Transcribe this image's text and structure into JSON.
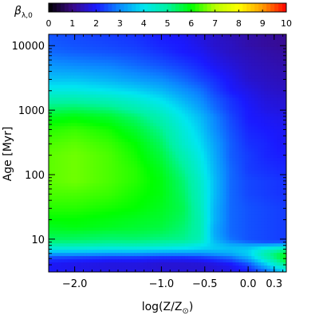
{
  "chart_data": {
    "type": "heatmap",
    "colorbar": {
      "label_symbol": "β",
      "label_subscript": "λ,0",
      "range": [
        0,
        10
      ],
      "ticks": [
        "0",
        "1",
        "2",
        "3",
        "4",
        "5",
        "6",
        "7",
        "8",
        "9",
        "10"
      ],
      "colormap": [
        "#000000",
        "#3b0a86",
        "#1a1aff",
        "#0b8bff",
        "#00e6f0",
        "#00f2a0",
        "#00ff00",
        "#b8ff00",
        "#ffff00",
        "#ff9b00",
        "#ff0000"
      ]
    },
    "x_axis": {
      "label_prefix": "log(Z/Z",
      "label_sub": "⊙",
      "label_suffix": ")",
      "range": [
        -2.3,
        0.44
      ],
      "ticks": [
        {
          "value": -2.0,
          "label": "−2.0"
        },
        {
          "value": -1.0,
          "label": "−1.0"
        },
        {
          "value": -0.5,
          "label": "−0.5"
        },
        {
          "value": 0.0,
          "label": "0.0"
        },
        {
          "value": 0.3,
          "label": "0.3"
        }
      ]
    },
    "y_axis": {
      "label": "Age [Myr]",
      "scale": "log",
      "range": [
        3.1,
        15000
      ],
      "ticks": [
        {
          "value": 10,
          "label": "10"
        },
        {
          "value": 100,
          "label": "100"
        },
        {
          "value": 1000,
          "label": "1000"
        },
        {
          "value": 10000,
          "label": "10000"
        }
      ]
    },
    "x": [
      -2.3,
      -2.0,
      -1.6,
      -1.3,
      -1.0,
      -0.75,
      -0.55,
      -0.4,
      -0.2,
      0.0,
      0.2,
      0.44
    ],
    "y": [
      3.1,
      4,
      5,
      6,
      7,
      8,
      9,
      10,
      12,
      15,
      20,
      30,
      50,
      80,
      120,
      200,
      300,
      500,
      800,
      1000,
      1500,
      2000,
      3000,
      5000,
      8000,
      10000,
      15000
    ],
    "z": [
      [
        2.0,
        1.9,
        1.8,
        1.8,
        1.7,
        1.7,
        1.7,
        1.7,
        1.8,
        2.0,
        2.6,
        3.8
      ],
      [
        1.9,
        1.8,
        1.7,
        1.7,
        1.6,
        1.6,
        1.6,
        1.7,
        1.9,
        2.4,
        3.6,
        5.2
      ],
      [
        2.3,
        2.2,
        2.1,
        2.1,
        2.0,
        2.0,
        2.1,
        2.3,
        2.6,
        3.3,
        4.6,
        5.9
      ],
      [
        3.3,
        3.3,
        3.2,
        3.2,
        3.1,
        3.1,
        3.1,
        3.2,
        3.4,
        3.8,
        4.9,
        5.8
      ],
      [
        4.2,
        4.2,
        4.1,
        4.1,
        4.0,
        3.9,
        3.8,
        3.7,
        3.6,
        3.7,
        4.3,
        4.9
      ],
      [
        4.8,
        4.8,
        4.7,
        4.7,
        4.6,
        4.4,
        4.1,
        3.7,
        3.4,
        3.3,
        3.4,
        3.6
      ],
      [
        5.2,
        5.2,
        5.1,
        5.1,
        5.0,
        4.9,
        4.5,
        3.6,
        3.0,
        2.7,
        2.5,
        2.5
      ],
      [
        5.4,
        5.4,
        5.3,
        5.3,
        5.2,
        5.1,
        4.7,
        3.5,
        2.8,
        2.5,
        2.4,
        2.3
      ],
      [
        5.6,
        5.6,
        5.5,
        5.5,
        5.4,
        5.2,
        4.8,
        3.4,
        2.7,
        2.5,
        2.4,
        2.3
      ],
      [
        5.8,
        5.9,
        5.8,
        5.7,
        5.6,
        5.3,
        4.8,
        3.4,
        2.7,
        2.5,
        2.4,
        2.3
      ],
      [
        6.0,
        6.0,
        5.9,
        5.8,
        5.7,
        5.4,
        4.8,
        3.5,
        2.7,
        2.5,
        2.4,
        2.3
      ],
      [
        6.2,
        6.2,
        6.1,
        6.0,
        5.8,
        5.5,
        4.7,
        3.5,
        2.7,
        2.5,
        2.4,
        2.3
      ],
      [
        6.4,
        6.4,
        6.3,
        6.1,
        5.9,
        5.4,
        4.6,
        3.6,
        2.7,
        2.4,
        2.3,
        2.2
      ],
      [
        6.5,
        6.6,
        6.4,
        6.2,
        5.9,
        5.3,
        4.5,
        3.6,
        2.7,
        2.4,
        2.3,
        2.2
      ],
      [
        6.5,
        6.6,
        6.4,
        6.2,
        5.8,
        5.1,
        4.3,
        3.5,
        2.7,
        2.3,
        2.2,
        2.1
      ],
      [
        6.5,
        6.6,
        6.4,
        6.1,
        5.6,
        4.8,
        4.1,
        3.4,
        2.6,
        2.3,
        2.1,
        2.0
      ],
      [
        6.4,
        6.5,
        6.3,
        6.0,
        5.4,
        4.5,
        3.9,
        3.3,
        2.6,
        2.2,
        2.1,
        1.9
      ],
      [
        6.2,
        6.3,
        6.1,
        5.7,
        5.1,
        4.3,
        3.7,
        3.1,
        2.5,
        2.1,
        2.0,
        1.9
      ],
      [
        5.8,
        5.9,
        5.7,
        5.3,
        4.7,
        4.0,
        3.5,
        3.0,
        2.4,
        2.0,
        1.9,
        1.8
      ],
      [
        5.4,
        5.5,
        5.3,
        4.9,
        4.4,
        3.8,
        3.3,
        2.8,
        2.3,
        2.0,
        1.8,
        1.7
      ],
      [
        4.8,
        4.8,
        4.6,
        4.3,
        3.9,
        3.4,
        3.0,
        2.6,
        2.2,
        1.9,
        1.7,
        1.6
      ],
      [
        4.2,
        4.2,
        4.0,
        3.8,
        3.5,
        3.1,
        2.8,
        2.4,
        2.0,
        1.8,
        1.6,
        1.5
      ],
      [
        3.6,
        3.6,
        3.4,
        3.2,
        3.0,
        2.7,
        2.4,
        2.2,
        1.9,
        1.6,
        1.5,
        1.4
      ],
      [
        3.1,
        3.0,
        2.9,
        2.7,
        2.5,
        2.3,
        2.1,
        1.9,
        1.7,
        1.5,
        1.4,
        1.3
      ],
      [
        2.7,
        2.6,
        2.5,
        2.4,
        2.2,
        2.0,
        1.9,
        1.7,
        1.5,
        1.4,
        1.3,
        1.2
      ],
      [
        2.6,
        2.5,
        2.4,
        2.3,
        2.1,
        2.0,
        1.8,
        1.6,
        1.5,
        1.3,
        1.2,
        1.1
      ],
      [
        2.5,
        2.4,
        2.3,
        2.2,
        2.0,
        1.9,
        1.7,
        1.6,
        1.4,
        1.3,
        1.2,
        1.1
      ]
    ]
  }
}
